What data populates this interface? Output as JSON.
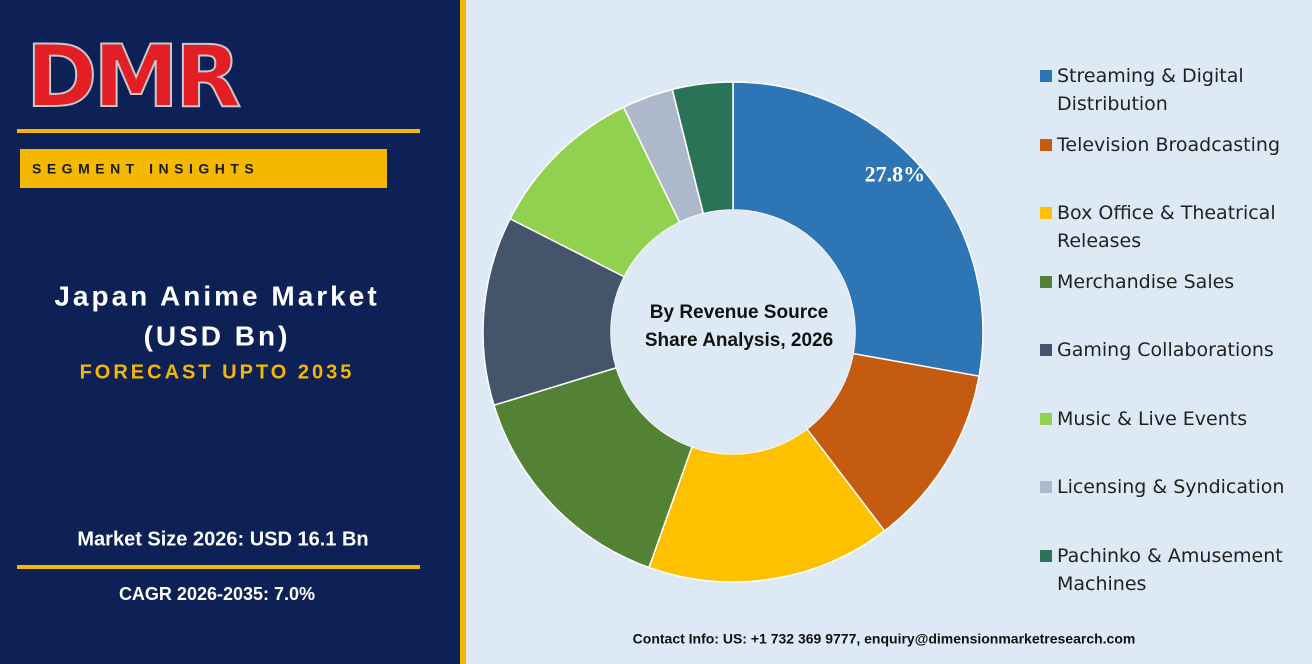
{
  "panel": {
    "logo": "DMR",
    "tag": "SEGMENT INSIGHTS",
    "title": [
      "Japan Anime Market",
      "(USD Bn)"
    ],
    "subtitle": "FORECAST UPTO 2035",
    "market_size": "Market Size 2026: USD 16.1 Bn",
    "cagr": "CAGR 2026-2035: 7.0%"
  },
  "chart_data": {
    "type": "donut",
    "center_text": [
      "By Revenue Source",
      "Share Analysis, 2026"
    ],
    "categories": [
      "Streaming & Digital Distribution",
      "Television Broadcasting",
      "Box Office & Theatrical Releases",
      "Merchandise Sales",
      "Gaming Collaborations",
      "Music & Live Events",
      "Licensing & Syndication",
      "Pachinko & Amusement Machines"
    ],
    "values": [
      27.8,
      11.8,
      15.8,
      14.8,
      12.2,
      10.3,
      3.3,
      3.9
    ],
    "value_labels": [
      "27.8%",
      null,
      null,
      null,
      null,
      null,
      null,
      null
    ],
    "colors": [
      "#2e75b6",
      "#c55a11",
      "#ffc000",
      "#548235",
      "#44546a",
      "#92d050",
      "#adb9ca",
      "#2b7357"
    ],
    "legend": "right"
  },
  "footer": "Contact Info: US: +1 732 369 9777, enquiry@dimensionmarketresearch.com"
}
